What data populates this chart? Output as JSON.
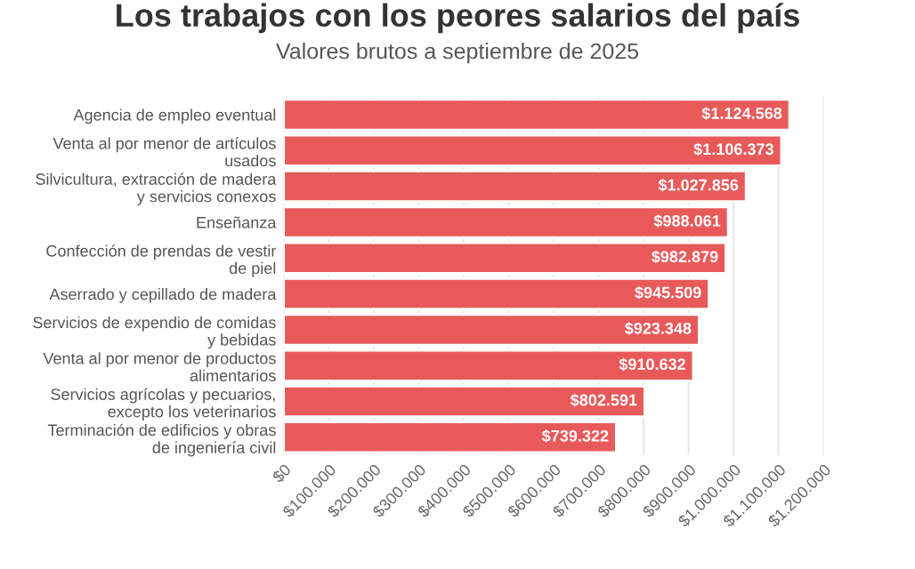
{
  "chart_data": {
    "type": "bar",
    "orientation": "horizontal",
    "title": "Los trabajos con los peores salarios del país",
    "subtitle": "Valores brutos a septiembre de 2025",
    "categories": [
      "Agencia de empleo eventual",
      "Venta al por menor de artículos\nusados",
      "Silvicultura, extracción de madera\ny servicios conexos",
      "Enseñanza",
      "Confección de prendas de vestir\nde piel",
      "Aserrado y cepillado de madera",
      "Servicios de expendio de comidas\ny bebidas",
      "Venta al por menor de productos\nalimentarios",
      "Servicios agrícolas y pecuarios,\nexcepto los veterinarios",
      "Terminación de edificios y obras\nde ingeniería civil"
    ],
    "values": [
      1124568,
      1106373,
      1027856,
      988061,
      982879,
      945509,
      923348,
      910632,
      802591,
      739322
    ],
    "value_labels": [
      "$1.124.568",
      "$1.106.373",
      "$1.027.856",
      "$988.061",
      "$982.879",
      "$945.509",
      "$923.348",
      "$910.632",
      "$802.591",
      "$739.322"
    ],
    "color": "#e85a5a",
    "xlim": [
      0,
      1200000
    ],
    "xticks": [
      {
        "value": 0,
        "label": "$0"
      },
      {
        "value": 100000,
        "label": "$100.000"
      },
      {
        "value": 200000,
        "label": "$200.000"
      },
      {
        "value": 300000,
        "label": "$300.000"
      },
      {
        "value": 400000,
        "label": "$400.000"
      },
      {
        "value": 500000,
        "label": "$500.000"
      },
      {
        "value": 600000,
        "label": "$600.000"
      },
      {
        "value": 700000,
        "label": "$700.000"
      },
      {
        "value": 800000,
        "label": "$800.000"
      },
      {
        "value": 900000,
        "label": "$900.000"
      },
      {
        "value": 1000000,
        "label": "$1.000.000"
      },
      {
        "value": 1100000,
        "label": "$1.100.000"
      },
      {
        "value": 1200000,
        "label": "$1.200.000"
      }
    ],
    "grid": "x"
  }
}
